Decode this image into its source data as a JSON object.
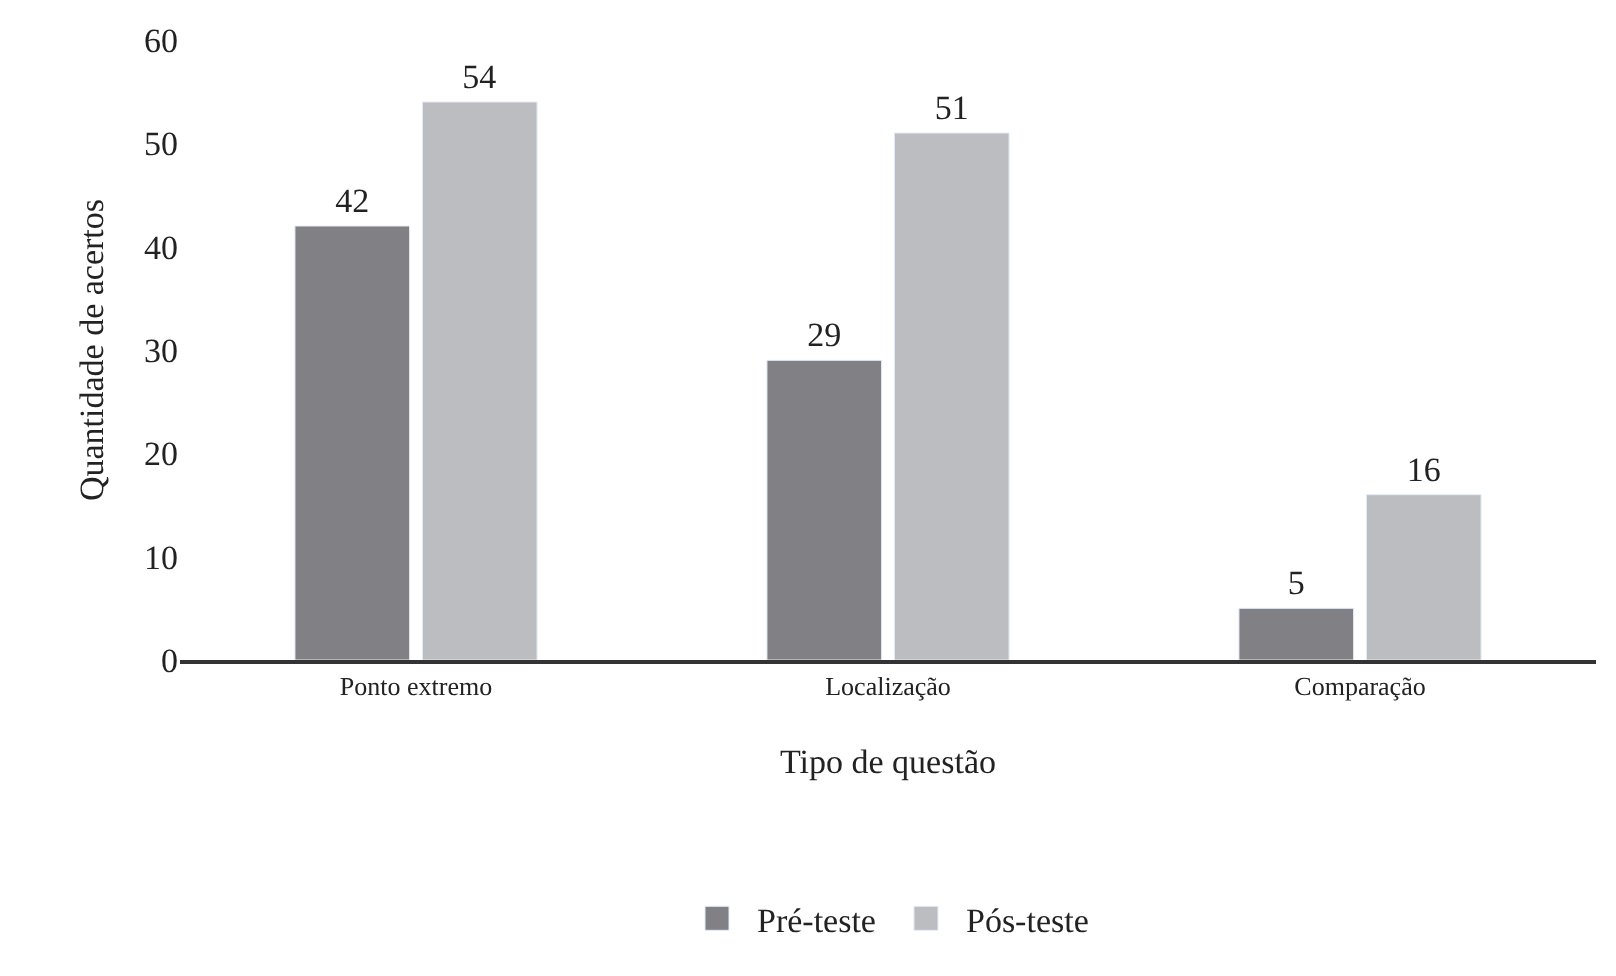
{
  "chart_data": {
    "type": "bar",
    "xlabel": "Tipo de questão",
    "ylabel": "Quantidade de acertos",
    "categories": [
      "Ponto extremo",
      "Localização",
      "Comparação"
    ],
    "series": [
      {
        "name": "Pré-teste",
        "color": "#808085",
        "values": [
          42,
          29,
          5
        ]
      },
      {
        "name": "Pós-teste",
        "color": "#bcbdc1",
        "values": [
          54,
          51,
          16
        ]
      }
    ],
    "ylim": [
      0,
      60
    ],
    "yticks": [
      0,
      10,
      20,
      30,
      40,
      50,
      60
    ],
    "data_labels": true,
    "legend": "bottom"
  }
}
